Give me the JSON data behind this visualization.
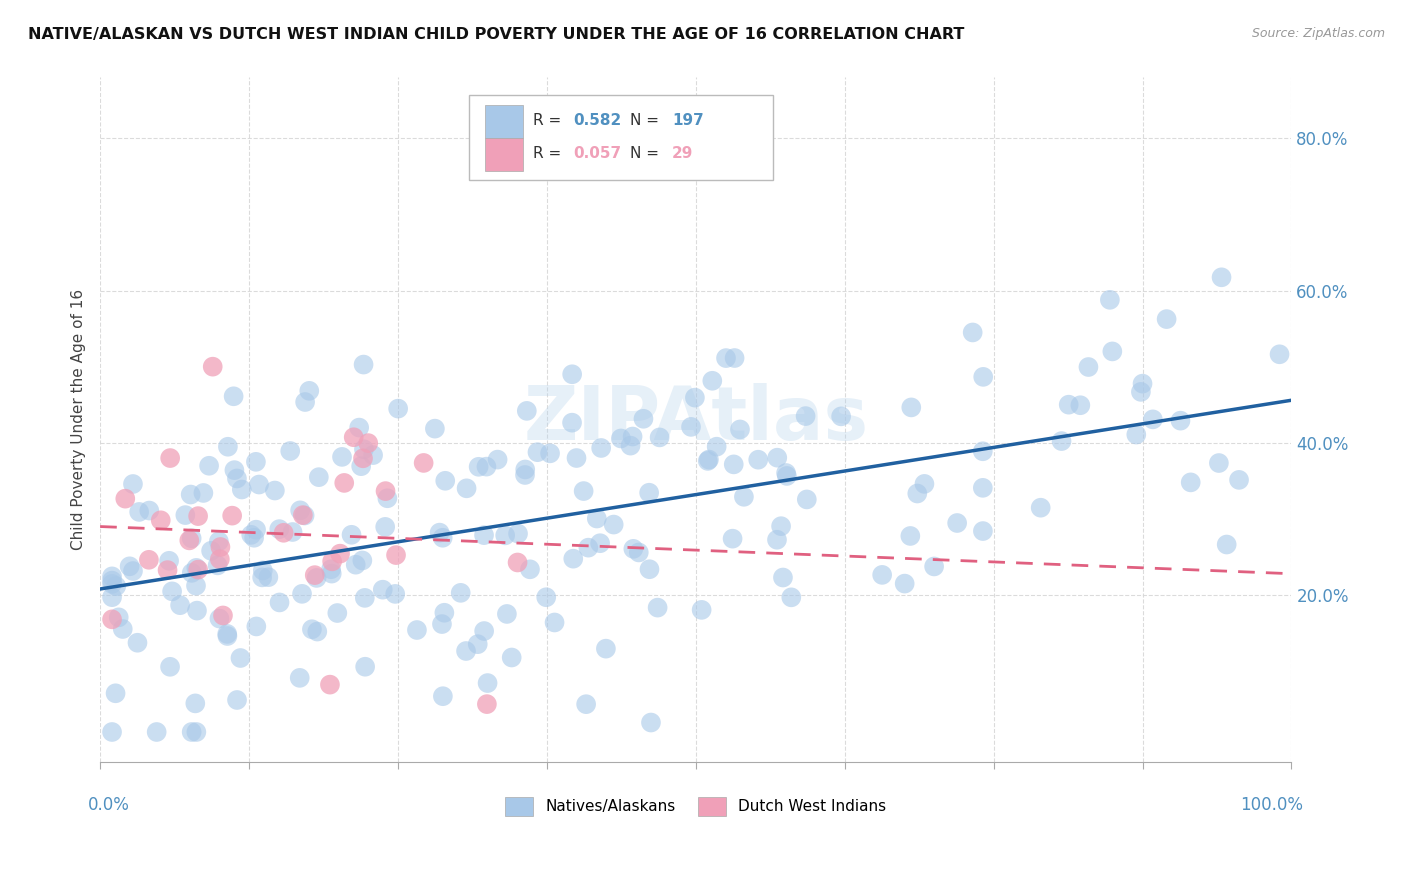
{
  "title": "NATIVE/ALASKAN VS DUTCH WEST INDIAN CHILD POVERTY UNDER THE AGE OF 16 CORRELATION CHART",
  "source": "Source: ZipAtlas.com",
  "ylabel": "Child Poverty Under the Age of 16",
  "watermark": "ZIPAtlas",
  "blue_color": "#a8c8e8",
  "pink_color": "#f0a0b8",
  "blue_line_color": "#2060a0",
  "pink_line_color": "#e06080",
  "background_color": "#ffffff",
  "grid_color": "#d8d8d8",
  "tick_label_color": "#5090c0",
  "pink_tick_color": "#e07090",
  "blue_R": "0.582",
  "blue_N": "197",
  "pink_R": "0.057",
  "pink_N": "29",
  "ytick_positions": [
    0.2,
    0.4,
    0.6,
    0.8
  ],
  "ytick_labels": [
    "20.0%",
    "40.0%",
    "60.0%",
    "80.0%"
  ],
  "xlim": [
    0.0,
    1.0
  ],
  "ylim": [
    -0.02,
    0.88
  ]
}
